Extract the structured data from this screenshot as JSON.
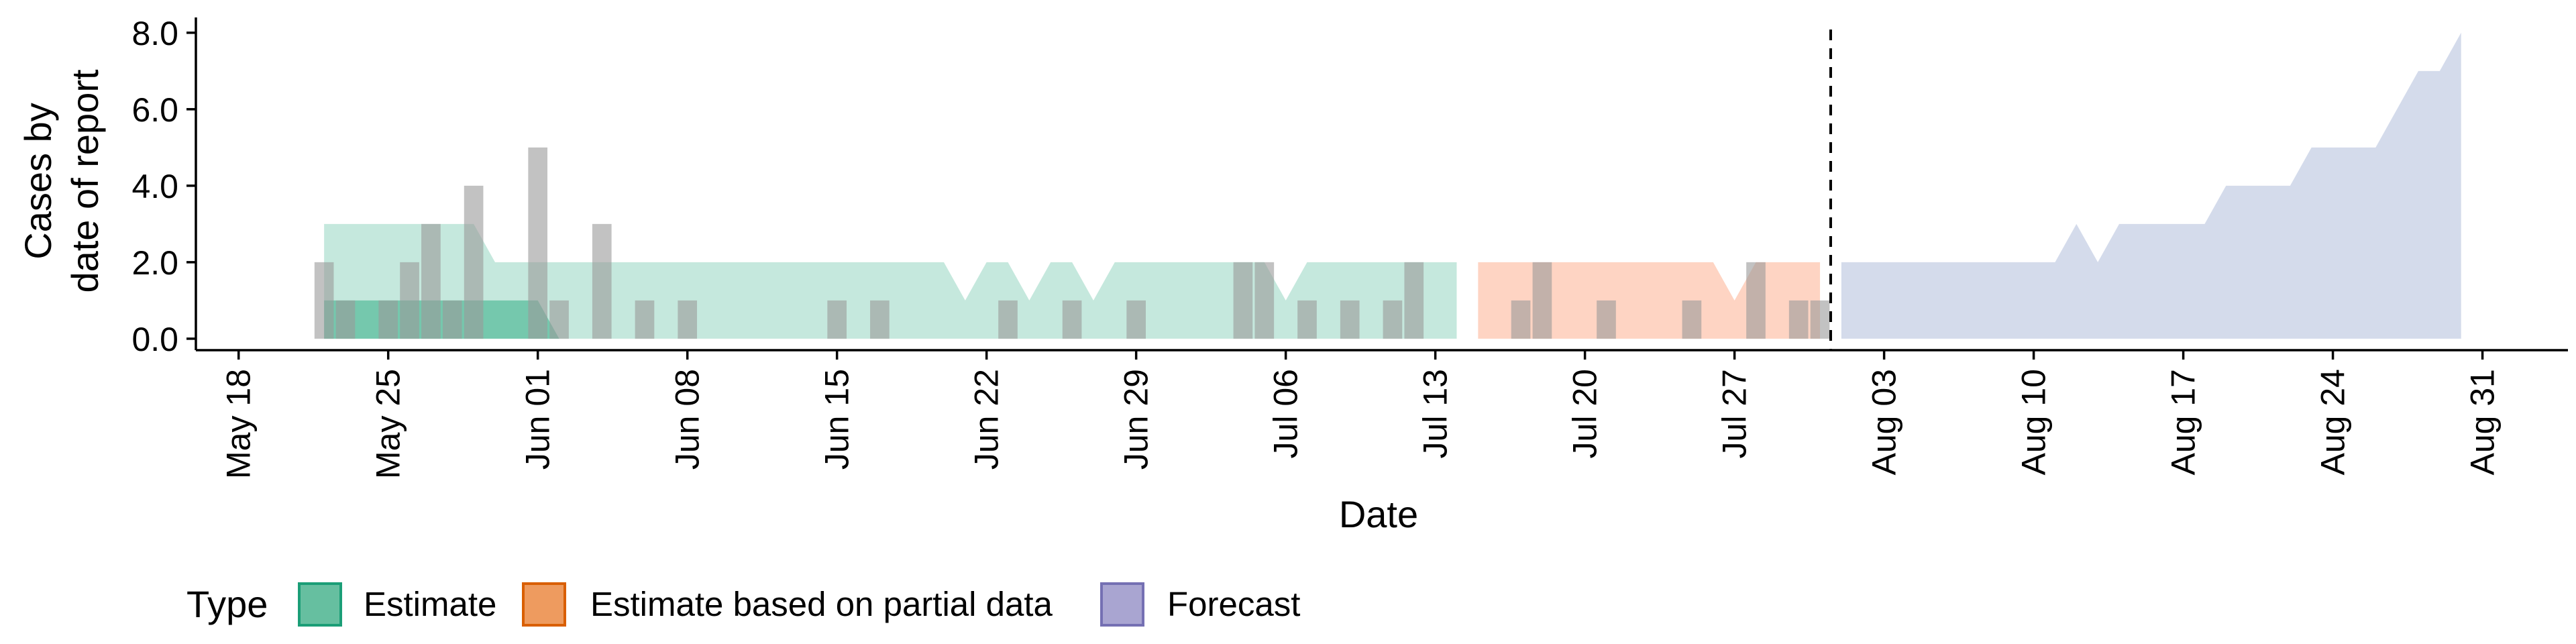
{
  "chart_data": {
    "type": "area",
    "xlabel": "Date",
    "ylabel_lines": [
      "Cases by",
      "date of report"
    ],
    "x_range": [
      "2020-05-16",
      "2020-09-04"
    ],
    "ylim": [
      -0.3,
      8.4
    ],
    "y_ticks": [
      0,
      2,
      4,
      6,
      8
    ],
    "y_tick_labels": [
      "0.0",
      "2.0",
      "4.0",
      "6.0",
      "8.0"
    ],
    "x_ticks": [
      "2020-05-18",
      "2020-05-25",
      "2020-06-01",
      "2020-06-08",
      "2020-06-15",
      "2020-06-22",
      "2020-06-29",
      "2020-07-06",
      "2020-07-13",
      "2020-07-20",
      "2020-07-27",
      "2020-08-03",
      "2020-08-10",
      "2020-08-17",
      "2020-08-24",
      "2020-08-31"
    ],
    "x_tick_labels": [
      "May 18",
      "May 25",
      "Jun 01",
      "Jun 08",
      "Jun 15",
      "Jun 22",
      "Jun 29",
      "Jul 06",
      "Jul 13",
      "Jul 20",
      "Jul 27",
      "Aug 03",
      "Aug 10",
      "Aug 17",
      "Aug 24",
      "Aug 31"
    ],
    "forecast_date": "2020-07-31",
    "grid": false,
    "legend": {
      "title": "Type",
      "position": "bottom",
      "entries": [
        {
          "label": "Estimate",
          "fill": "#66bfa0",
          "stroke": "#1b9e77"
        },
        {
          "label": "Estimate based on partial data",
          "fill": "#ee9b5f",
          "stroke": "#d95f02"
        },
        {
          "label": "Forecast",
          "fill": "#a9a5d1",
          "stroke": "#7570b3"
        }
      ]
    },
    "reported_cases": [
      {
        "date": "2020-05-22",
        "value": 2
      },
      {
        "date": "2020-05-23",
        "value": 1
      },
      {
        "date": "2020-05-25",
        "value": 1
      },
      {
        "date": "2020-05-26",
        "value": 2
      },
      {
        "date": "2020-05-27",
        "value": 3
      },
      {
        "date": "2020-05-28",
        "value": 1
      },
      {
        "date": "2020-05-29",
        "value": 4
      },
      {
        "date": "2020-06-01",
        "value": 5
      },
      {
        "date": "2020-06-02",
        "value": 1
      },
      {
        "date": "2020-06-04",
        "value": 3
      },
      {
        "date": "2020-06-06",
        "value": 1
      },
      {
        "date": "2020-06-08",
        "value": 1
      },
      {
        "date": "2020-06-15",
        "value": 1
      },
      {
        "date": "2020-06-17",
        "value": 1
      },
      {
        "date": "2020-06-23",
        "value": 1
      },
      {
        "date": "2020-06-26",
        "value": 1
      },
      {
        "date": "2020-06-29",
        "value": 1
      },
      {
        "date": "2020-07-04",
        "value": 2
      },
      {
        "date": "2020-07-05",
        "value": 2
      },
      {
        "date": "2020-07-07",
        "value": 1
      },
      {
        "date": "2020-07-09",
        "value": 1
      },
      {
        "date": "2020-07-11",
        "value": 1
      },
      {
        "date": "2020-07-12",
        "value": 2
      },
      {
        "date": "2020-07-17",
        "value": 1
      },
      {
        "date": "2020-07-18",
        "value": 2
      },
      {
        "date": "2020-07-21",
        "value": 1
      },
      {
        "date": "2020-07-25",
        "value": 1
      },
      {
        "date": "2020-07-28",
        "value": 2
      },
      {
        "date": "2020-07-30",
        "value": 1
      },
      {
        "date": "2020-07-31",
        "value": 1
      }
    ],
    "series": [
      {
        "name": "Estimate",
        "fill": "#66c2a5",
        "upper_90": [
          [
            "2020-05-22",
            3
          ],
          [
            "2020-05-29",
            3
          ],
          [
            "2020-05-30",
            2
          ],
          [
            "2020-06-20",
            2
          ],
          [
            "2020-06-21",
            1
          ],
          [
            "2020-06-22",
            2
          ],
          [
            "2020-06-23",
            2
          ],
          [
            "2020-06-24",
            1
          ],
          [
            "2020-06-25",
            2
          ],
          [
            "2020-06-26",
            2
          ],
          [
            "2020-06-27",
            1
          ],
          [
            "2020-06-28",
            2
          ],
          [
            "2020-07-04",
            2
          ],
          [
            "2020-07-05",
            2
          ],
          [
            "2020-07-06",
            1
          ],
          [
            "2020-07-07",
            2
          ],
          [
            "2020-07-14",
            2
          ]
        ],
        "lower_90": [
          [
            "2020-05-22",
            0
          ],
          [
            "2020-07-14",
            0
          ]
        ],
        "upper_50": [
          [
            "2020-05-22",
            1
          ],
          [
            "2020-06-01",
            1
          ],
          [
            "2020-06-02",
            0
          ]
        ],
        "lower_50": [
          [
            "2020-05-22",
            0
          ],
          [
            "2020-06-02",
            0
          ]
        ]
      },
      {
        "name": "Estimate based on partial data",
        "fill": "#fc8d62",
        "upper_90": [
          [
            "2020-07-15",
            2
          ],
          [
            "2020-07-26",
            2
          ],
          [
            "2020-07-27",
            1
          ],
          [
            "2020-07-28",
            2
          ],
          [
            "2020-07-31",
            2
          ]
        ],
        "lower_90": [
          [
            "2020-07-15",
            0
          ],
          [
            "2020-07-31",
            0
          ]
        ]
      },
      {
        "name": "Forecast",
        "fill": "#8da0cb",
        "upper_90": [
          [
            "2020-08-01",
            2
          ],
          [
            "2020-08-11",
            2
          ],
          [
            "2020-08-12",
            3
          ],
          [
            "2020-08-13",
            2
          ],
          [
            "2020-08-14",
            3
          ],
          [
            "2020-08-18",
            3
          ],
          [
            "2020-08-19",
            4
          ],
          [
            "2020-08-22",
            4
          ],
          [
            "2020-08-23",
            5
          ],
          [
            "2020-08-26",
            5
          ],
          [
            "2020-08-28",
            7
          ],
          [
            "2020-08-29",
            7
          ],
          [
            "2020-08-30",
            8
          ]
        ],
        "lower_90": [
          [
            "2020-08-01",
            0
          ],
          [
            "2020-08-30",
            0
          ]
        ]
      }
    ]
  }
}
